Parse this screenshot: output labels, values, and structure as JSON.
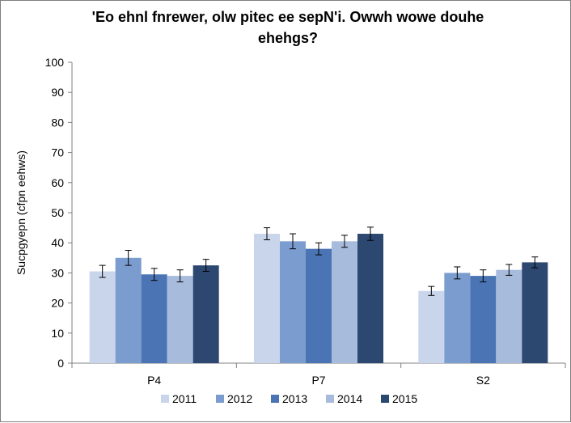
{
  "chart_data": {
    "type": "bar",
    "title_lines": [
      "'Eo ehnl fnrewer, olw pitec ee sepN'i. Owwh wowe douhe",
      "ehehgs?"
    ],
    "xlabel": "",
    "ylabel": "Sucpgyepn (cfpn eehws)",
    "ylim": [
      0,
      100
    ],
    "yticks": [
      "0",
      "10",
      "20",
      "30",
      "40",
      "50",
      "60",
      "70",
      "80",
      "90",
      "100"
    ],
    "categories": [
      "P4",
      "P7",
      "S2"
    ],
    "series": [
      {
        "name": "2011",
        "color": "#c9d5ea",
        "values": [
          30.5,
          43.0,
          24.0
        ],
        "errors": [
          2.0,
          2.0,
          1.5
        ]
      },
      {
        "name": "2012",
        "color": "#7b9cce",
        "values": [
          35.0,
          40.5,
          30.0
        ],
        "errors": [
          2.5,
          2.5,
          2.0
        ]
      },
      {
        "name": "2013",
        "color": "#4a74b4",
        "values": [
          29.5,
          38.0,
          29.0
        ],
        "errors": [
          2.0,
          2.0,
          2.0
        ]
      },
      {
        "name": "2014",
        "color": "#a7bbdd",
        "values": [
          29.0,
          40.5,
          31.0
        ],
        "errors": [
          2.0,
          2.0,
          1.8
        ]
      },
      {
        "name": "2015",
        "color": "#2c4770",
        "values": [
          32.5,
          43.0,
          33.5
        ],
        "errors": [
          2.0,
          2.2,
          1.8
        ]
      }
    ],
    "grid": false,
    "legend": "bottom"
  }
}
